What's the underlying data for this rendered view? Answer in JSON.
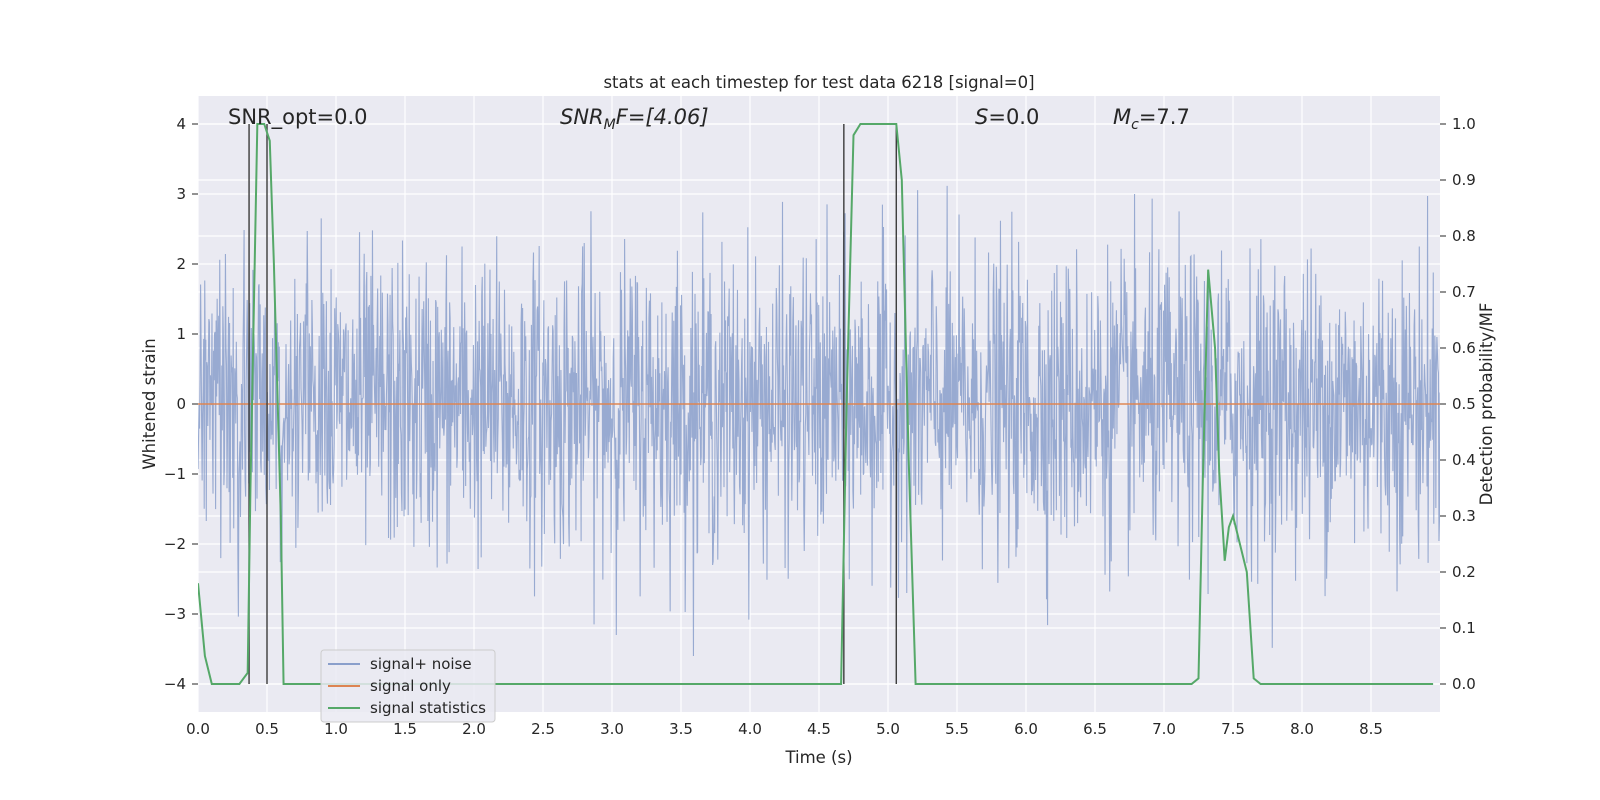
{
  "chart_data": {
    "type": "line",
    "title": "stats at each timestep for test data 6218 [signal=0]",
    "xlabel": "Time (s)",
    "ylabel": "Whitened strain",
    "y2label": "Detection probability/MF",
    "xlim": [
      0,
      9.0
    ],
    "ylim": [
      -4.4,
      4.4
    ],
    "y2lim": [
      -0.05,
      1.05
    ],
    "xticks": [
      0.0,
      0.5,
      1.0,
      1.5,
      2.0,
      2.5,
      3.0,
      3.5,
      4.0,
      4.5,
      5.0,
      5.5,
      6.0,
      6.5,
      7.0,
      7.5,
      8.0,
      8.5
    ],
    "xtick_labels": [
      "0.0",
      "0.5",
      "1.0",
      "1.5",
      "2.0",
      "2.5",
      "3.0",
      "3.5",
      "4.0",
      "4.5",
      "5.0",
      "5.5",
      "6.0",
      "6.5",
      "7.0",
      "7.5",
      "8.0",
      "8.5"
    ],
    "yticks": [
      -4,
      -3,
      -2,
      -1,
      0,
      1,
      2,
      3,
      4
    ],
    "ytick_labels": [
      "−4",
      "−3",
      "−2",
      "−1",
      "0",
      "1",
      "2",
      "3",
      "4"
    ],
    "y2ticks": [
      0.0,
      0.1,
      0.2,
      0.3,
      0.4,
      0.5,
      0.6,
      0.7,
      0.8,
      0.9,
      1.0
    ],
    "y2tick_labels": [
      "0.0",
      "0.1",
      "0.2",
      "0.3",
      "0.4",
      "0.5",
      "0.6",
      "0.7",
      "0.8",
      "0.9",
      "1.0"
    ],
    "grid": true,
    "legend_placement": "lower-left",
    "annotations": {
      "snr_opt": "SNR_opt=0.0",
      "snr_mf_sym": "SNR",
      "snr_mf_sub": "M",
      "snr_mf_rest": "F=[4.06]",
      "s_sym": "S",
      "s_rest": "=0.0",
      "mc_sym": "M",
      "mc_sub": "c",
      "mc_rest": "=7.7"
    },
    "series": [
      {
        "name": "signal+ noise",
        "color": "#8a9fcb",
        "kind": "noise",
        "description_values": {
          "band_lower": -1.4,
          "band_upper": 1.4,
          "max": 3.4,
          "min": -3.6
        }
      },
      {
        "name": "signal only",
        "color": "#dd8452",
        "kind": "constant",
        "y": 0
      },
      {
        "name": "signal statistics",
        "color": "#55a868",
        "kind": "probability",
        "x": [
          0.0,
          0.05,
          0.1,
          0.2,
          0.3,
          0.36,
          0.38,
          0.43,
          0.48,
          0.52,
          0.55,
          0.6,
          0.62,
          0.7,
          1.0,
          2.0,
          3.0,
          4.0,
          4.66,
          4.7,
          4.75,
          4.8,
          4.9,
          5.0,
          5.06,
          5.1,
          5.15,
          5.2,
          5.25,
          5.5,
          6.0,
          6.5,
          7.0,
          7.2,
          7.25,
          7.28,
          7.32,
          7.37,
          7.4,
          7.44,
          7.47,
          7.5,
          7.53,
          7.6,
          7.65,
          7.7,
          8.0,
          8.5,
          8.95
        ],
        "values": [
          0.18,
          0.05,
          0.0,
          0.0,
          0.0,
          0.02,
          0.35,
          1.0,
          1.0,
          0.97,
          0.75,
          0.3,
          0.0,
          0.0,
          0.0,
          0.0,
          0.0,
          0.0,
          0.0,
          0.5,
          0.98,
          1.0,
          1.0,
          1.0,
          1.0,
          0.9,
          0.4,
          0.0,
          0.0,
          0.0,
          0.0,
          0.0,
          0.0,
          0.0,
          0.01,
          0.35,
          0.74,
          0.6,
          0.38,
          0.22,
          0.28,
          0.3,
          0.27,
          0.2,
          0.01,
          0.0,
          0.0,
          0.0,
          0.0
        ]
      },
      {
        "name": "markers",
        "color": "#3b3b3b",
        "kind": "vlines",
        "x": [
          0.37,
          0.5,
          4.68,
          5.06
        ]
      }
    ]
  }
}
